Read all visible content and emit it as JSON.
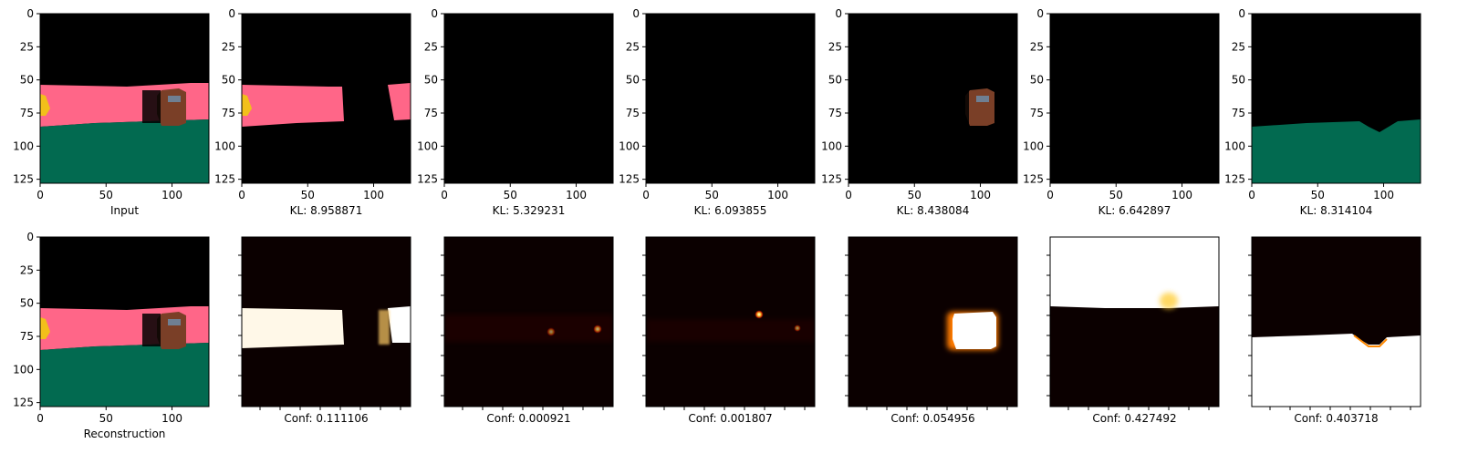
{
  "figure": {
    "colors": {
      "background": "#000000",
      "wall": "#ff6688",
      "floor": "#026a50",
      "object_brown": "#7a3f27",
      "object_screen": "#6f7f92",
      "object_yellow": "#f2c01a",
      "heat_low": "#0b0000",
      "heat_mid": "#d03000",
      "heat_high": "#ffffff"
    }
  },
  "chart_data": [
    {
      "type": "image",
      "row": 0,
      "col": 0,
      "kind": "scene",
      "show_x_ticks": true,
      "show_y_ticks": true,
      "x_ticks": [
        0,
        50,
        100
      ],
      "y_ticks": [
        0,
        25,
        50,
        75,
        100,
        125
      ],
      "xlim": [
        0,
        128
      ],
      "ylim": [
        128,
        0
      ],
      "caption": "Input",
      "layers": [
        "wall",
        "floor",
        "object",
        "yellow"
      ]
    },
    {
      "type": "image",
      "row": 0,
      "col": 1,
      "kind": "scene",
      "show_x_ticks": true,
      "show_y_ticks": true,
      "x_ticks": [
        0,
        50,
        100
      ],
      "y_ticks": [
        0,
        25,
        50,
        75,
        100,
        125
      ],
      "xlim": [
        0,
        128
      ],
      "ylim": [
        128,
        0
      ],
      "caption": "KL: 8.958871",
      "layers": [
        "wall_mask",
        "yellow"
      ]
    },
    {
      "type": "image",
      "row": 0,
      "col": 2,
      "kind": "scene",
      "show_x_ticks": true,
      "show_y_ticks": true,
      "x_ticks": [
        0,
        50,
        100
      ],
      "y_ticks": [
        0,
        25,
        50,
        75,
        100,
        125
      ],
      "xlim": [
        0,
        128
      ],
      "ylim": [
        128,
        0
      ],
      "caption": "KL: 5.329231",
      "layers": []
    },
    {
      "type": "image",
      "row": 0,
      "col": 3,
      "kind": "scene",
      "show_x_ticks": true,
      "show_y_ticks": true,
      "x_ticks": [
        0,
        50,
        100
      ],
      "y_ticks": [
        0,
        25,
        50,
        75,
        100,
        125
      ],
      "xlim": [
        0,
        128
      ],
      "ylim": [
        128,
        0
      ],
      "caption": "KL: 6.093855",
      "layers": []
    },
    {
      "type": "image",
      "row": 0,
      "col": 4,
      "kind": "scene",
      "show_x_ticks": true,
      "show_y_ticks": true,
      "x_ticks": [
        0,
        50,
        100
      ],
      "y_ticks": [
        0,
        25,
        50,
        75,
        100,
        125
      ],
      "xlim": [
        0,
        128
      ],
      "ylim": [
        128,
        0
      ],
      "caption": "KL: 8.438084",
      "layers": [
        "object"
      ]
    },
    {
      "type": "image",
      "row": 0,
      "col": 5,
      "kind": "scene",
      "show_x_ticks": true,
      "show_y_ticks": true,
      "x_ticks": [
        0,
        50,
        100
      ],
      "y_ticks": [
        0,
        25,
        50,
        75,
        100,
        125
      ],
      "xlim": [
        0,
        128
      ],
      "ylim": [
        128,
        0
      ],
      "caption": "KL: 6.642897",
      "layers": []
    },
    {
      "type": "image",
      "row": 0,
      "col": 6,
      "kind": "scene",
      "show_x_ticks": true,
      "show_y_ticks": true,
      "x_ticks": [
        0,
        50,
        100
      ],
      "y_ticks": [
        0,
        25,
        50,
        75,
        100,
        125
      ],
      "xlim": [
        0,
        128
      ],
      "ylim": [
        128,
        0
      ],
      "caption": "KL: 8.314104",
      "layers": [
        "floor_mask"
      ]
    },
    {
      "type": "image",
      "row": 1,
      "col": 0,
      "kind": "scene",
      "show_x_ticks": true,
      "show_y_ticks": true,
      "x_ticks": [
        0,
        50,
        100
      ],
      "y_ticks": [
        0,
        25,
        50,
        75,
        100,
        125
      ],
      "xlim": [
        0,
        128
      ],
      "ylim": [
        128,
        0
      ],
      "caption": "Reconstruction",
      "layers": [
        "wall",
        "floor",
        "object",
        "yellow"
      ]
    },
    {
      "type": "heatmap",
      "row": 1,
      "col": 1,
      "kind": "heat",
      "show_x_ticks": false,
      "show_y_ticks": false,
      "caption": "Conf: 0.111106",
      "layers": [
        "wall_band"
      ]
    },
    {
      "type": "heatmap",
      "row": 1,
      "col": 2,
      "kind": "heat",
      "show_x_ticks": false,
      "show_y_ticks": false,
      "caption": "Conf: 0.000921",
      "layers": [
        "speckle_a"
      ]
    },
    {
      "type": "heatmap",
      "row": 1,
      "col": 3,
      "kind": "heat",
      "show_x_ticks": false,
      "show_y_ticks": false,
      "caption": "Conf: 0.001807",
      "layers": [
        "speckle_b"
      ]
    },
    {
      "type": "heatmap",
      "row": 1,
      "col": 4,
      "kind": "heat",
      "show_x_ticks": false,
      "show_y_ticks": false,
      "caption": "Conf: 0.054956",
      "layers": [
        "object_blob"
      ]
    },
    {
      "type": "heatmap",
      "row": 1,
      "col": 5,
      "kind": "heat",
      "show_x_ticks": false,
      "show_y_ticks": false,
      "caption": "Conf: 0.427492",
      "layers": [
        "top_white"
      ]
    },
    {
      "type": "heatmap",
      "row": 1,
      "col": 6,
      "kind": "heat",
      "show_x_ticks": false,
      "show_y_ticks": false,
      "caption": "Conf: 0.403718",
      "layers": [
        "bottom_white"
      ]
    }
  ]
}
